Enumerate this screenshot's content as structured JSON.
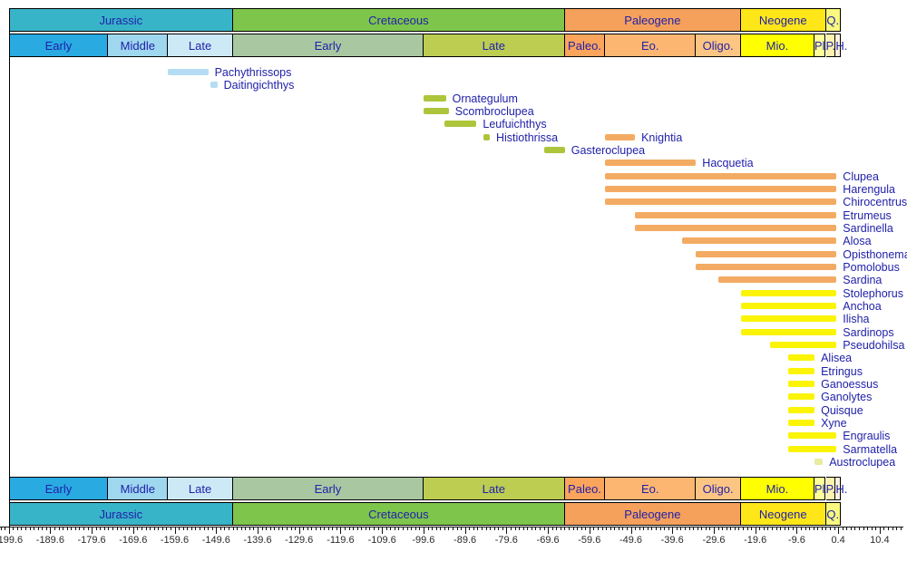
{
  "chart_data": {
    "type": "bar",
    "subtype": "taxon-temporal-range-chart",
    "title": "",
    "xlabel": "",
    "ylabel": "",
    "x_axis": {
      "range_ma": [
        -203,
        16
      ],
      "minor_tick_step_ma": 1,
      "major_tick_step_ma": 10,
      "tick_labels": [
        "-199.6",
        "-189.6",
        "-179.6",
        "-169.6",
        "-159.6",
        "-149.6",
        "-139.6",
        "-129.6",
        "-119.6",
        "-109.6",
        "-99.6",
        "-89.6",
        "-79.6",
        "-69.6",
        "-59.6",
        "-49.6",
        "-39.6",
        "-29.6",
        "-19.6",
        "-9.6",
        "0.4",
        "10.4"
      ]
    },
    "periods": [
      {
        "label": "Jurassic",
        "start": -199.6,
        "end": -145.5,
        "color": "#38b4c8"
      },
      {
        "label": "Cretaceous",
        "start": -145.5,
        "end": -65.5,
        "color": "#7ec54b"
      },
      {
        "label": "Paleogene",
        "start": -65.5,
        "end": -23.03,
        "color": "#f5a15c"
      },
      {
        "label": "Neogene",
        "start": -23.03,
        "end": -2.588,
        "color": "#ffe619"
      },
      {
        "label": "Q.",
        "start": -2.588,
        "end": 1.0,
        "color": "#f9f97f"
      }
    ],
    "epochs": [
      {
        "label": "Early",
        "start": -199.6,
        "end": -175.6,
        "color": "#29aae1"
      },
      {
        "label": "Middle",
        "start": -175.6,
        "end": -161.2,
        "color": "#9ed7ee"
      },
      {
        "label": "Late",
        "start": -161.2,
        "end": -145.5,
        "color": "#cde9f6"
      },
      {
        "label": "Early",
        "start": -145.5,
        "end": -99.6,
        "color": "#a9c8a1"
      },
      {
        "label": "Late",
        "start": -99.6,
        "end": -65.5,
        "color": "#bccd52"
      },
      {
        "label": "Paleo.",
        "start": -65.5,
        "end": -55.8,
        "color": "#fba45c"
      },
      {
        "label": "Eo.",
        "start": -55.8,
        "end": -33.9,
        "color": "#fcb671"
      },
      {
        "label": "Oligo.",
        "start": -33.9,
        "end": -23.03,
        "color": "#fdc583"
      },
      {
        "label": "Mio.",
        "start": -23.03,
        "end": -5.332,
        "color": "#ffff00"
      },
      {
        "label": "Pl.",
        "start": -5.332,
        "end": -2.588,
        "color": "#ffff99"
      },
      {
        "label": "P.",
        "start": -2.588,
        "end": -0.2,
        "color": "#fff2ae"
      },
      {
        "label": "H.",
        "start": -0.2,
        "end": 1.0,
        "color": "#fef2df"
      }
    ],
    "bar_colors": {
      "jurassic": "#b5dcf4",
      "cretaceous": "#adc53b",
      "paleogene": "#f3ab63",
      "neogene": "#fbf405",
      "pliocene": "#e7eca2"
    },
    "taxa": [
      {
        "name": "Pachythrissops",
        "start": -161.2,
        "end": -151.5,
        "origin": "jurassic",
        "row": 0
      },
      {
        "name": "Daitingichthys",
        "start": -151.0,
        "end": -149.3,
        "origin": "jurassic",
        "row": 1
      },
      {
        "name": "Ornategulum",
        "start": -99.6,
        "end": -94.2,
        "origin": "cretaceous",
        "row": 2
      },
      {
        "name": "Scombroclupea",
        "start": -99.6,
        "end": -93.5,
        "origin": "cretaceous",
        "row": 3
      },
      {
        "name": "Leufuichthys",
        "start": -94.6,
        "end": -86.8,
        "origin": "cretaceous",
        "row": 4
      },
      {
        "name": "Histiothrissa",
        "start": -85.2,
        "end": -83.6,
        "origin": "cretaceous",
        "row": 5
      },
      {
        "name": "Knightia",
        "start": -55.8,
        "end": -48.6,
        "origin": "paleogene",
        "row": 5
      },
      {
        "name": "Gasteroclupea",
        "start": -70.6,
        "end": -65.5,
        "origin": "cretaceous",
        "row": 6
      },
      {
        "name": "Hacquetia",
        "start": -55.8,
        "end": -33.9,
        "origin": "paleogene",
        "row": 7
      },
      {
        "name": "Clupea",
        "start": -55.8,
        "end": 0,
        "origin": "paleogene",
        "row": 8
      },
      {
        "name": "Harengula",
        "start": -55.8,
        "end": 0,
        "origin": "paleogene",
        "row": 9
      },
      {
        "name": "Chirocentrus",
        "start": -55.8,
        "end": 0,
        "origin": "paleogene",
        "row": 10
      },
      {
        "name": "Etrumeus",
        "start": -48.6,
        "end": 0,
        "origin": "paleogene",
        "row": 11
      },
      {
        "name": "Sardinella",
        "start": -48.6,
        "end": 0,
        "origin": "paleogene",
        "row": 12
      },
      {
        "name": "Alosa",
        "start": -37.2,
        "end": 0,
        "origin": "paleogene",
        "row": 13
      },
      {
        "name": "Opisthonema",
        "start": -33.9,
        "end": 0,
        "origin": "paleogene",
        "row": 14
      },
      {
        "name": "Pomolobus",
        "start": -33.9,
        "end": 0,
        "origin": "paleogene",
        "row": 15
      },
      {
        "name": "Sardina",
        "start": -28.4,
        "end": 0,
        "origin": "paleogene",
        "row": 16
      },
      {
        "name": "Stolephorus",
        "start": -23.0,
        "end": 0,
        "origin": "neogene",
        "row": 17
      },
      {
        "name": "Anchoa",
        "start": -23.0,
        "end": 0,
        "origin": "neogene",
        "row": 18
      },
      {
        "name": "Ilisha",
        "start": -23.0,
        "end": 0,
        "origin": "neogene",
        "row": 19
      },
      {
        "name": "Sardinops",
        "start": -23.0,
        "end": 0,
        "origin": "neogene",
        "row": 20
      },
      {
        "name": "Pseudohilsa",
        "start": -16.0,
        "end": 0,
        "origin": "neogene",
        "row": 21
      },
      {
        "name": "Alisea",
        "start": -11.6,
        "end": -5.3,
        "origin": "neogene",
        "row": 22
      },
      {
        "name": "Etringus",
        "start": -11.6,
        "end": -5.3,
        "origin": "neogene",
        "row": 23
      },
      {
        "name": "Ganoessus",
        "start": -11.6,
        "end": -5.3,
        "origin": "neogene",
        "row": 24
      },
      {
        "name": "Ganolytes",
        "start": -11.6,
        "end": -5.3,
        "origin": "neogene",
        "row": 25
      },
      {
        "name": "Quisque",
        "start": -11.6,
        "end": -5.3,
        "origin": "neogene",
        "row": 26
      },
      {
        "name": "Xyne",
        "start": -11.6,
        "end": -5.3,
        "origin": "neogene",
        "row": 27
      },
      {
        "name": "Engraulis",
        "start": -11.6,
        "end": 0,
        "origin": "neogene",
        "row": 28
      },
      {
        "name": "Sarmatella",
        "start": -11.6,
        "end": 0,
        "origin": "neogene",
        "row": 29
      },
      {
        "name": "Austroclupea",
        "start": -5.3,
        "end": -3.3,
        "origin": "pliocene",
        "row": 30
      }
    ]
  },
  "style": {
    "taxon_label_color": "#2121aa",
    "header_text_color": "#2121aa",
    "axis_text_color": "#2b2b2b",
    "border_color": "#000000",
    "background": "#ffffff"
  }
}
